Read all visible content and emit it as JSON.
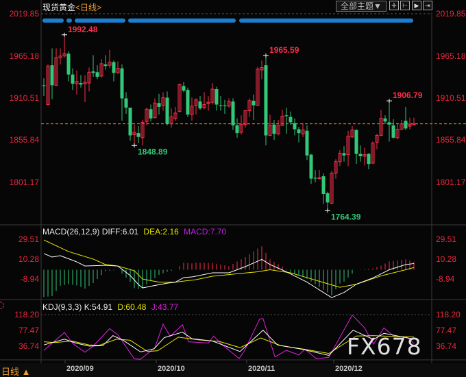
{
  "header": {
    "instrument": "现货黄金",
    "period": "<日线>",
    "theme_button": "全部主题▼"
  },
  "toolbar": {
    "icons": [
      "crosshair-icon",
      "zoom-in-icon",
      "play-icon",
      "scroll-end-icon"
    ]
  },
  "colors": {
    "up": "#ff2e4a",
    "down": "#33c878",
    "axis_label": "#e8283e",
    "last_price_line": "#f0961e",
    "diff": "#ffffff",
    "dea": "#e6e600",
    "macd_bar_up": "#ff2e4a",
    "macd_bar_down": "#33c878",
    "k": "#ffffff",
    "d": "#e6e600",
    "j": "#e020e0",
    "event_dots": "#1a7fd0"
  },
  "chart_data": [
    {
      "type": "candlestick",
      "title": "现货黄金",
      "y_ticks": [
        "2019.85",
        "1965.18",
        "1910.51",
        "1855.84",
        "1801.17"
      ],
      "ylim": [
        1764.39,
        2019.85
      ],
      "x_ticks": [
        "2020/09",
        "2020/10",
        "2020/11",
        "2020/12"
      ],
      "last_price": 1877,
      "ohlc": [
        [
          1927,
          1936,
          1913,
          1926
        ],
        [
          1902,
          1954,
          1901,
          1952
        ],
        [
          1953,
          1975,
          1909,
          1927
        ],
        [
          1927,
          1975,
          1926,
          1963
        ],
        [
          1963,
          1975,
          1954,
          1965
        ],
        [
          1965,
          1992.48,
          1963,
          1968
        ],
        [
          1968,
          1971,
          1932,
          1941
        ],
        [
          1941,
          1949,
          1921,
          1929
        ],
        [
          1929,
          1946,
          1915,
          1932
        ],
        [
          1930,
          1940,
          1924,
          1928
        ],
        [
          1929,
          1940,
          1905,
          1931
        ],
        [
          1930,
          1950,
          1919,
          1944
        ],
        [
          1945,
          1966,
          1938,
          1943
        ],
        [
          1944,
          1953,
          1935,
          1938
        ],
        [
          1939,
          1961,
          1937,
          1955
        ],
        [
          1954,
          1966,
          1947,
          1952
        ],
        [
          1953,
          1973,
          1949,
          1957
        ],
        [
          1957,
          1959,
          1932,
          1943
        ],
        [
          1943,
          1958,
          1942,
          1949
        ],
        [
          1949,
          1954,
          1881,
          1910
        ],
        [
          1910,
          1918,
          1890,
          1898
        ],
        [
          1898,
          1898,
          1855,
          1862
        ],
        [
          1863,
          1876,
          1848.89,
          1866
        ],
        [
          1865,
          1874,
          1852,
          1860
        ],
        [
          1859,
          1882,
          1849,
          1879
        ],
        [
          1880,
          1898,
          1875,
          1896
        ],
        [
          1896,
          1902,
          1880,
          1884
        ],
        [
          1885,
          1910,
          1884,
          1904
        ],
        [
          1904,
          1916,
          1889,
          1899
        ],
        [
          1901,
          1918,
          1894,
          1911
        ],
        [
          1911,
          1919,
          1875,
          1877
        ],
        [
          1877,
          1897,
          1872,
          1886
        ],
        [
          1884,
          1899,
          1881,
          1891
        ],
        [
          1893,
          1929,
          1892,
          1928
        ],
        [
          1926,
          1931,
          1918,
          1920
        ],
        [
          1921,
          1924,
          1886,
          1889
        ],
        [
          1889,
          1911,
          1881,
          1900
        ],
        [
          1901,
          1910,
          1889,
          1908
        ],
        [
          1906,
          1913,
          1895,
          1897
        ],
        [
          1898,
          1918,
          1896,
          1902
        ],
        [
          1903,
          1913,
          1894,
          1905
        ],
        [
          1905,
          1930,
          1902,
          1922
        ],
        [
          1922,
          1925,
          1894,
          1902
        ],
        [
          1901,
          1913,
          1894,
          1900
        ],
        [
          1901,
          1908,
          1890,
          1900
        ],
        [
          1900,
          1910,
          1898,
          1906
        ],
        [
          1906,
          1910,
          1869,
          1875
        ],
        [
          1875,
          1884,
          1859,
          1865
        ],
        [
          1866,
          1888,
          1863,
          1876
        ],
        [
          1876,
          1895,
          1872,
          1894
        ],
        [
          1894,
          1910,
          1886,
          1907
        ],
        [
          1907,
          1915,
          1882,
          1901
        ],
        [
          1901,
          1951,
          1900,
          1948
        ],
        [
          1947,
          1959,
          1935,
          1950
        ],
        [
          1953,
          1965.59,
          1849,
          1862
        ],
        [
          1862,
          1889,
          1861,
          1875
        ],
        [
          1876,
          1882,
          1856,
          1864
        ],
        [
          1864,
          1882,
          1862,
          1875
        ],
        [
          1875,
          1895,
          1874,
          1887
        ],
        [
          1888,
          1898,
          1864,
          1887
        ],
        [
          1886,
          1893,
          1876,
          1879
        ],
        [
          1878,
          1884,
          1862,
          1870
        ],
        [
          1870,
          1873,
          1853,
          1865
        ],
        [
          1864,
          1878,
          1860,
          1869
        ],
        [
          1868,
          1875,
          1830,
          1836
        ],
        [
          1837,
          1838,
          1799,
          1806
        ],
        [
          1807,
          1817,
          1801,
          1806
        ],
        [
          1806,
          1817,
          1805,
          1807
        ],
        [
          1809,
          1813,
          1773,
          1786
        ],
        [
          1787,
          1789,
          1764.39,
          1775
        ],
        [
          1774,
          1816,
          1773,
          1813
        ],
        [
          1813,
          1831,
          1806,
          1828
        ],
        [
          1828,
          1843,
          1822,
          1839
        ],
        [
          1839,
          1848,
          1828,
          1836
        ],
        [
          1837,
          1868,
          1822,
          1861
        ],
        [
          1860,
          1874,
          1859,
          1869
        ],
        [
          1869,
          1870,
          1825,
          1838
        ],
        [
          1838,
          1849,
          1828,
          1835
        ],
        [
          1835,
          1846,
          1823,
          1837
        ],
        [
          1838,
          1839,
          1818,
          1825
        ],
        [
          1826,
          1854,
          1825,
          1852
        ],
        [
          1853,
          1864,
          1844,
          1862
        ],
        [
          1862,
          1895,
          1861,
          1884
        ],
        [
          1884,
          1888,
          1877,
          1880
        ],
        [
          1879,
          1906.79,
          1854,
          1876
        ],
        [
          1875,
          1883,
          1858,
          1859
        ],
        [
          1859,
          1878,
          1857,
          1870
        ],
        [
          1870,
          1882,
          1869,
          1877
        ],
        [
          1881,
          1899,
          1869,
          1871
        ],
        [
          1874,
          1885,
          1870,
          1876
        ],
        [
          1876,
          1885,
          1875,
          1877
        ]
      ],
      "annotations": [
        {
          "text": "1992.48",
          "kind": "high",
          "candle": 5
        },
        {
          "text": "1848.89",
          "kind": "low",
          "candle": 22
        },
        {
          "text": "1965.59",
          "kind": "high",
          "candle": 54
        },
        {
          "text": "1764.39",
          "kind": "low",
          "candle": 69
        },
        {
          "text": "1906.79",
          "kind": "high",
          "candle": 84
        }
      ]
    },
    {
      "type": "line+bar",
      "title": "MACD(26,12,9)",
      "legend": {
        "diff": "DIFF:6.01",
        "dea": "DEA:2.16",
        "macd": "MACD:7.70"
      },
      "y_ticks": [
        "29.51",
        "10.28",
        "-8.94"
      ],
      "diff_points": [
        [
          0,
          15.6
        ],
        [
          2,
          12.3
        ],
        [
          4,
          13.6
        ],
        [
          8,
          7.6
        ],
        [
          10,
          3.6
        ],
        [
          15,
          4.3
        ],
        [
          18,
          3.6
        ],
        [
          21,
          -5.6
        ],
        [
          23,
          -14.3
        ],
        [
          24,
          -17.6
        ],
        [
          26,
          -16
        ],
        [
          30,
          -13
        ],
        [
          32,
          -12
        ],
        [
          34,
          -7.6
        ],
        [
          36,
          -7
        ],
        [
          41,
          -3
        ],
        [
          45,
          -3
        ],
        [
          49,
          3
        ],
        [
          53,
          10
        ],
        [
          55,
          5
        ],
        [
          59,
          -2
        ],
        [
          64,
          -12
        ],
        [
          68,
          -22
        ],
        [
          70,
          -27
        ],
        [
          73,
          -22
        ],
        [
          76,
          -14
        ],
        [
          80,
          -8
        ],
        [
          84,
          0
        ],
        [
          88,
          5
        ],
        [
          90,
          6.01
        ]
      ],
      "dea_points": [
        [
          0,
          28.8
        ],
        [
          6,
          17.6
        ],
        [
          12,
          10.3
        ],
        [
          15,
          5.0
        ],
        [
          18,
          3.6
        ],
        [
          22,
          -1
        ],
        [
          24,
          -9
        ],
        [
          28,
          -12
        ],
        [
          32,
          -12
        ],
        [
          37,
          -9.6
        ],
        [
          41,
          -6.3
        ],
        [
          46,
          -4.3
        ],
        [
          52,
          -2
        ],
        [
          55,
          0
        ],
        [
          60,
          -3
        ],
        [
          66,
          -10
        ],
        [
          72,
          -17
        ],
        [
          76,
          -14
        ],
        [
          82,
          -6
        ],
        [
          88,
          0
        ],
        [
          90,
          2.16
        ]
      ]
    },
    {
      "type": "line",
      "title": "KDJ(9,3,3)",
      "legend": {
        "k": "K:54.91",
        "d": "D:60.48",
        "j": "J:43.77"
      },
      "y_ticks": [
        "118.20",
        "77.47",
        "36.74"
      ],
      "k_points": [
        [
          0,
          40
        ],
        [
          5,
          55
        ],
        [
          7.7,
          45
        ],
        [
          11,
          37
        ],
        [
          14.3,
          38
        ],
        [
          16.8,
          64
        ],
        [
          19.3,
          52
        ],
        [
          23.5,
          22
        ],
        [
          26.8,
          30
        ],
        [
          29.3,
          59
        ],
        [
          33.7,
          73
        ],
        [
          36,
          56
        ],
        [
          41,
          50
        ],
        [
          47.7,
          23
        ],
        [
          53.3,
          78
        ],
        [
          56.8,
          40
        ],
        [
          62.7,
          29
        ],
        [
          69.3,
          13
        ],
        [
          75.2,
          78
        ],
        [
          80.2,
          54
        ],
        [
          82.7,
          70
        ],
        [
          90,
          54.91
        ]
      ],
      "d_points": [
        [
          0,
          48
        ],
        [
          2.7,
          46
        ],
        [
          6.8,
          50
        ],
        [
          11,
          40
        ],
        [
          13.5,
          39
        ],
        [
          17.7,
          55
        ],
        [
          21,
          52
        ],
        [
          25.2,
          23
        ],
        [
          27.7,
          25
        ],
        [
          32.7,
          60
        ],
        [
          37.7,
          53
        ],
        [
          42.7,
          49
        ],
        [
          47.7,
          33
        ],
        [
          52.7,
          58
        ],
        [
          57.7,
          38
        ],
        [
          62.7,
          30
        ],
        [
          69.3,
          18
        ],
        [
          76,
          63
        ],
        [
          80.2,
          64
        ],
        [
          84.3,
          62
        ],
        [
          90,
          60.48
        ]
      ],
      "j_points": [
        [
          0,
          26
        ],
        [
          5,
          72
        ],
        [
          7,
          44
        ],
        [
          10,
          21
        ],
        [
          12,
          37
        ],
        [
          16,
          82
        ],
        [
          18,
          66
        ],
        [
          22,
          4
        ],
        [
          23.5,
          3
        ],
        [
          27,
          33
        ],
        [
          29,
          94
        ],
        [
          30.7,
          62
        ],
        [
          33.7,
          92
        ],
        [
          35.2,
          48
        ],
        [
          40,
          45
        ],
        [
          41.3,
          63
        ],
        [
          43.2,
          42
        ],
        [
          47.5,
          5
        ],
        [
          48.8,
          25
        ],
        [
          52.5,
          107
        ],
        [
          53.3,
          108
        ],
        [
          56.2,
          9
        ],
        [
          59,
          26
        ],
        [
          62,
          14
        ],
        [
          63.5,
          29
        ],
        [
          66.3,
          4
        ],
        [
          69.3,
          8
        ],
        [
          75,
          117
        ],
        [
          78,
          84
        ],
        [
          80.2,
          42
        ],
        [
          82.7,
          84
        ],
        [
          86,
          54
        ],
        [
          88.2,
          61
        ],
        [
          90,
          43.77
        ]
      ]
    }
  ],
  "footer": {
    "period": "日线",
    "period_arrow": "▲"
  },
  "watermark": "FX678"
}
